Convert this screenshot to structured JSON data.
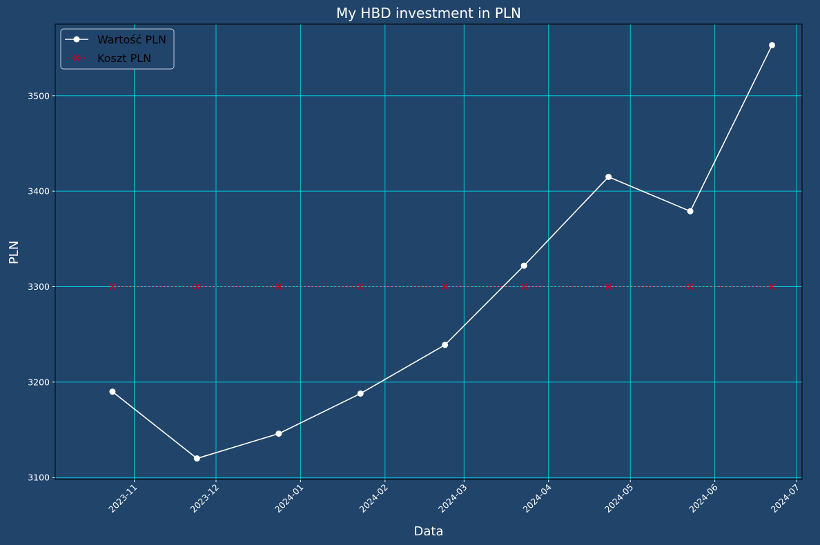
{
  "chart_data": {
    "type": "line",
    "title": "My HBD investment in PLN",
    "xlabel": "Data",
    "ylabel": "PLN",
    "x": [
      "2023-10-24",
      "2023-11-24",
      "2023-12-24",
      "2024-01-23",
      "2024-02-23",
      "2024-03-23",
      "2024-04-23",
      "2024-05-23",
      "2024-06-22"
    ],
    "series": [
      {
        "name": "Wartość PLN",
        "values": [
          3190,
          3120,
          3146,
          3188,
          3239,
          3322,
          3415,
          3379,
          3553
        ],
        "color": "#ffffff",
        "marker": "circle",
        "linestyle": "solid"
      },
      {
        "name": "Koszt PLN",
        "values": [
          3300,
          3300,
          3300,
          3300,
          3300,
          3300,
          3300,
          3300,
          3300
        ],
        "color": "#cc0022",
        "marker": "x",
        "linestyle": "dotted"
      }
    ],
    "xlim": [
      "2023-10-03",
      "2024-07-03"
    ],
    "ylim": [
      3098,
      3575
    ],
    "x_ticks": [
      "2023-11",
      "2023-12",
      "2024-01",
      "2024-02",
      "2024-03",
      "2024-04",
      "2024-05",
      "2024-06",
      "2024-07"
    ],
    "x_tick_dates": [
      "2023-11-01",
      "2023-12-01",
      "2024-01-01",
      "2024-02-01",
      "2024-03-01",
      "2024-04-01",
      "2024-05-01",
      "2024-06-01",
      "2024-07-01"
    ],
    "y_ticks": [
      3100,
      3200,
      3300,
      3400,
      3500
    ],
    "grid": true,
    "grid_color": "#00c8d8",
    "legend_position": "top-left",
    "background_color": "#21446b"
  }
}
